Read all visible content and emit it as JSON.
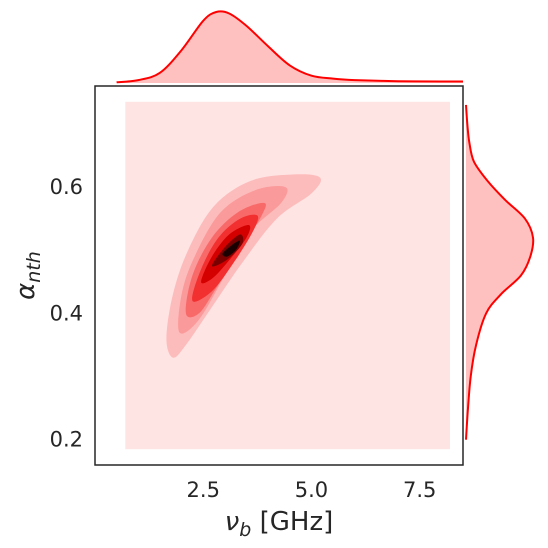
{
  "chart_data": {
    "type": "contour",
    "subtype": "joint-kde",
    "x_label": "ν_b [GHz]",
    "y_label": "α_nth",
    "x_ticks": [
      "2.5",
      "5.0",
      "7.5"
    ],
    "y_ticks": [
      "0.2",
      "0.4",
      "0.6"
    ],
    "xlim": [
      0.0,
      8.5
    ],
    "ylim": [
      0.16,
      0.76
    ],
    "fill_region": {
      "x": [
        0.7,
        8.2
      ],
      "y": [
        0.185,
        0.735
      ]
    },
    "density_peak": {
      "x": 3.3,
      "y": 0.5
    },
    "contour_levels": [
      {
        "level": 0.05,
        "color": "#fdbcbc",
        "points": [
          [
            1.8,
            0.33
          ],
          [
            1.65,
            0.36
          ],
          [
            1.8,
            0.43
          ],
          [
            2.15,
            0.5
          ],
          [
            2.75,
            0.57
          ],
          [
            3.6,
            0.61
          ],
          [
            4.6,
            0.62
          ],
          [
            5.2,
            0.615
          ],
          [
            5.0,
            0.59
          ],
          [
            4.2,
            0.55
          ],
          [
            3.4,
            0.48
          ],
          [
            2.7,
            0.41
          ],
          [
            2.1,
            0.35
          ]
        ]
      },
      {
        "level": 0.2,
        "color": "#fb9a9a",
        "points": [
          [
            1.95,
            0.37
          ],
          [
            2.0,
            0.43
          ],
          [
            2.3,
            0.49
          ],
          [
            2.9,
            0.56
          ],
          [
            3.7,
            0.595
          ],
          [
            4.4,
            0.6
          ],
          [
            4.3,
            0.575
          ],
          [
            3.6,
            0.53
          ],
          [
            3.0,
            0.46
          ],
          [
            2.4,
            0.39
          ]
        ]
      },
      {
        "level": 0.35,
        "color": "#f86a6a",
        "points": [
          [
            2.1,
            0.4
          ],
          [
            2.25,
            0.46
          ],
          [
            2.7,
            0.52
          ],
          [
            3.3,
            0.56
          ],
          [
            3.9,
            0.575
          ],
          [
            3.85,
            0.555
          ],
          [
            3.35,
            0.5
          ],
          [
            2.8,
            0.44
          ],
          [
            2.4,
            0.4
          ]
        ]
      },
      {
        "level": 0.5,
        "color": "#f23030",
        "points": [
          [
            2.25,
            0.42
          ],
          [
            2.45,
            0.47
          ],
          [
            2.85,
            0.52
          ],
          [
            3.35,
            0.55
          ],
          [
            3.75,
            0.555
          ],
          [
            3.65,
            0.53
          ],
          [
            3.2,
            0.48
          ],
          [
            2.7,
            0.435
          ]
        ]
      },
      {
        "level": 0.65,
        "color": "#d40000",
        "points": [
          [
            2.45,
            0.45
          ],
          [
            2.7,
            0.49
          ],
          [
            3.1,
            0.525
          ],
          [
            3.55,
            0.54
          ],
          [
            3.5,
            0.52
          ],
          [
            3.05,
            0.48
          ],
          [
            2.7,
            0.455
          ]
        ]
      },
      {
        "level": 0.8,
        "color": "#7a0000",
        "points": [
          [
            2.7,
            0.475
          ],
          [
            3.0,
            0.505
          ],
          [
            3.35,
            0.525
          ],
          [
            3.4,
            0.51
          ],
          [
            3.05,
            0.485
          ]
        ]
      },
      {
        "level": 0.95,
        "color": "#1a0000",
        "points": [
          [
            2.95,
            0.495
          ],
          [
            3.2,
            0.51
          ],
          [
            3.35,
            0.515
          ],
          [
            3.25,
            0.5
          ],
          [
            3.05,
            0.49
          ]
        ]
      }
    ],
    "marginal_x": {
      "x": [
        0.5,
        1.0,
        1.5,
        2.0,
        2.5,
        2.8,
        3.1,
        3.5,
        4.0,
        4.5,
        5.0,
        5.5,
        6.0,
        7.0,
        8.0,
        8.5
      ],
      "density": [
        0.01,
        0.04,
        0.14,
        0.45,
        0.85,
        0.97,
        0.95,
        0.78,
        0.5,
        0.24,
        0.1,
        0.06,
        0.04,
        0.025,
        0.02,
        0.02
      ]
    },
    "marginal_y": {
      "y": [
        0.2,
        0.25,
        0.3,
        0.35,
        0.4,
        0.43,
        0.46,
        0.49,
        0.52,
        0.55,
        0.58,
        0.61,
        0.64,
        0.67,
        0.7,
        0.73
      ],
      "density": [
        0.0,
        0.03,
        0.07,
        0.15,
        0.3,
        0.52,
        0.82,
        0.96,
        1.0,
        0.88,
        0.58,
        0.32,
        0.12,
        0.05,
        0.02,
        0.0
      ]
    },
    "colors": {
      "fill": "#ffc0c0",
      "line": "#ff0000",
      "axes": "#262626",
      "region": "#ffe4e4"
    }
  }
}
